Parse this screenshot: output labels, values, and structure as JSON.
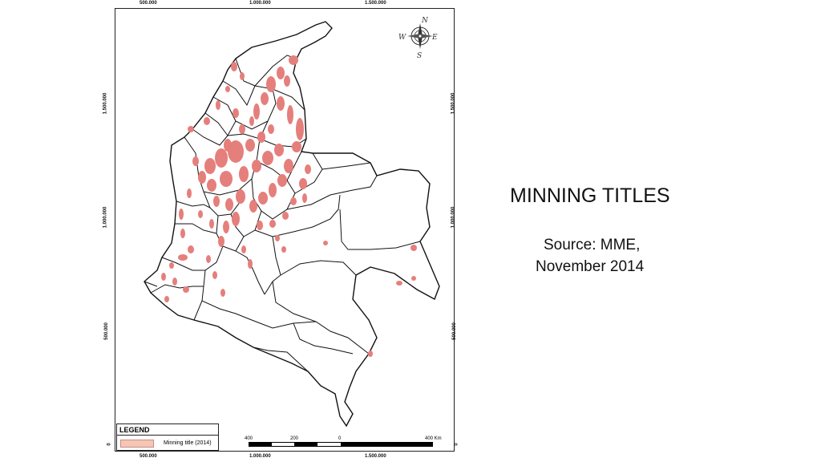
{
  "map": {
    "ticks_top": [
      "500.000",
      "1.000.000",
      "1.500.000"
    ],
    "ticks_bottom": [
      "500.000",
      "1.000.000",
      "1.500.000"
    ],
    "ticks_left": [
      "1.500.000",
      "1.000.000",
      "500.000",
      "0"
    ],
    "ticks_right": [
      "1.500.000",
      "1.000.000",
      "500.000",
      "0"
    ],
    "compass": {
      "n": "N",
      "s": "S",
      "e": "E",
      "w": "W"
    },
    "colors": {
      "mining": "#e57f7c",
      "boundary": "#111111",
      "swatch": "#f4c6b4"
    }
  },
  "legend": {
    "title": "LEGEND",
    "items": [
      {
        "label": "Minning title (2014)"
      }
    ]
  },
  "scale": {
    "labels": [
      "400",
      "200",
      "0",
      "400 Km"
    ]
  },
  "slide": {
    "title": "MINNING TITLES",
    "source_line1": "Source: MME,",
    "source_line2": "November 2014"
  }
}
